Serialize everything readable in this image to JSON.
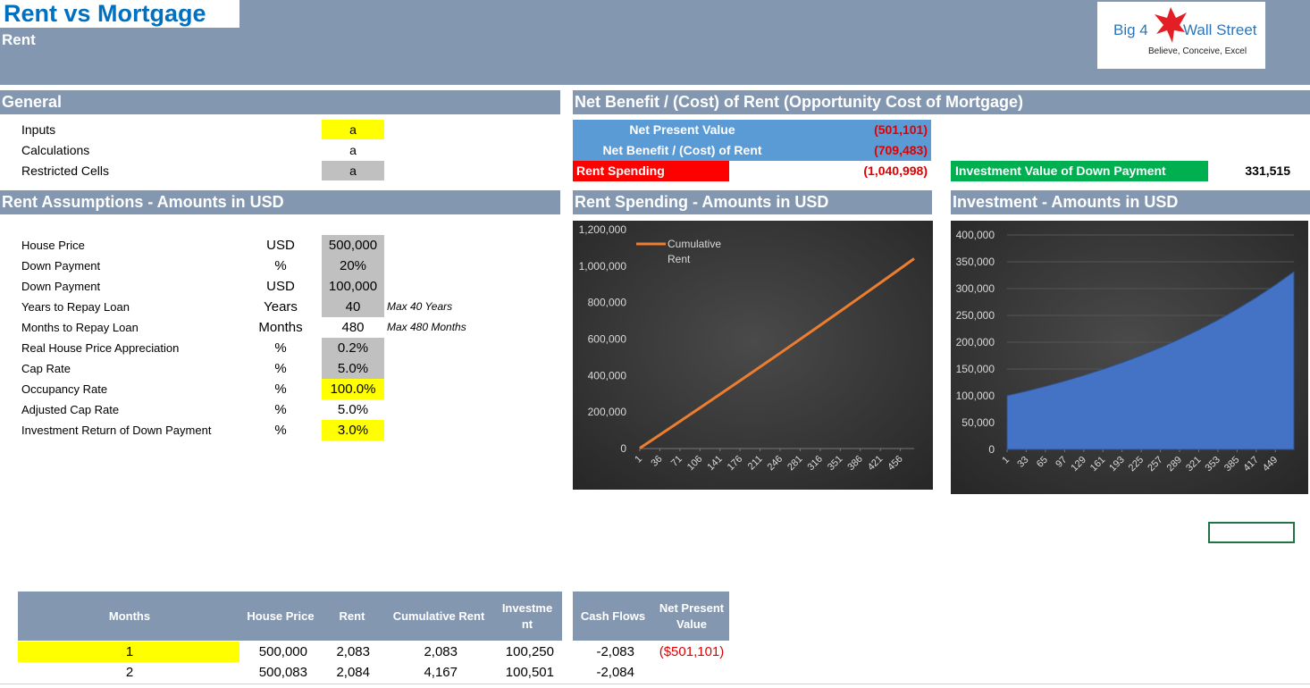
{
  "header": {
    "title": "Rent vs Mortgage",
    "subtitle": "Rent",
    "logo": {
      "brand_left": "Big 4",
      "brand_right": "Wall Street",
      "tagline": "Believe, Conceive, Excel"
    }
  },
  "general": {
    "title": "General",
    "rows": [
      [
        "Inputs",
        "a"
      ],
      [
        "Calculations",
        "a"
      ],
      [
        "Restricted Cells",
        "a"
      ]
    ]
  },
  "net_benefit": {
    "title": "Net Benefit / (Cost) of Rent (Opportunity Cost of Mortgage)",
    "rows": [
      [
        "Net Present Value",
        "(501,101)"
      ],
      [
        "Net Benefit / (Cost) of Rent",
        "(709,483)"
      ],
      [
        "Rent Spending",
        "(1,040,998)"
      ]
    ],
    "investment": [
      "Investment Value of Down Payment",
      "331,515"
    ]
  },
  "assumptions": {
    "title": "Rent Assumptions - Amounts in USD",
    "rows": [
      [
        "House Price",
        "USD",
        "500,000"
      ],
      [
        "Down Payment",
        "%",
        "20%"
      ],
      [
        "Down Payment",
        "USD",
        "100,000"
      ],
      [
        "Years to Repay Loan",
        "Years",
        "40",
        "Max 40 Years"
      ],
      [
        "Months to Repay Loan",
        "Months",
        "480",
        "Max 480 Months"
      ],
      [
        "Real House Price Appreciation",
        "%",
        "0.2%"
      ],
      [
        "Cap Rate",
        "%",
        "5.0%"
      ],
      [
        "Occupancy Rate",
        "%",
        "100.0%"
      ],
      [
        "Adjusted Cap Rate",
        "%",
        "5.0%"
      ],
      [
        "Investment Return of Down Payment",
        "%",
        "3.0%"
      ]
    ]
  },
  "chart_data": [
    {
      "type": "line",
      "title": "Rent Spending - Amounts in USD",
      "x": [
        1,
        36,
        71,
        106,
        141,
        176,
        211,
        246,
        281,
        316,
        351,
        386,
        421,
        456,
        480
      ],
      "series": [
        {
          "name": "Cumulative Rent",
          "color": "#ed7d31",
          "values": [
            2083,
            75200,
            148800,
            222800,
            297300,
            372100,
            447500,
            523200,
            599400,
            676100,
            753100,
            830600,
            908600,
            987000,
            1040998
          ]
        }
      ],
      "xlim": [
        1,
        480
      ],
      "xticks": [
        1,
        36,
        71,
        106,
        141,
        176,
        211,
        246,
        281,
        316,
        351,
        386,
        421,
        456
      ],
      "ylim": [
        0,
        1200000
      ],
      "yticks": [
        0,
        {
          "value": 200000,
          "label": "200,000"
        },
        {
          "value": 400000,
          "label": "400,000"
        },
        {
          "value": 600000,
          "label": "600,000"
        },
        {
          "value": 800000,
          "label": "800,000"
        },
        {
          "value": 1000000,
          "label": "1,000,000"
        },
        {
          "value": 1200000,
          "label": "1,200,000"
        }
      ],
      "grid": false,
      "legend": "top-left"
    },
    {
      "type": "area",
      "title": "Investment - Amounts in USD",
      "x": [
        1,
        33,
        65,
        97,
        129,
        161,
        193,
        225,
        257,
        289,
        321,
        353,
        385,
        417,
        449,
        480
      ],
      "values": [
        100250,
        108600,
        117600,
        127400,
        138000,
        149500,
        161900,
        175400,
        190000,
        205800,
        222900,
        241400,
        261500,
        283300,
        306800,
        331515
      ],
      "color": "#4472c4",
      "xlim": [
        1,
        480
      ],
      "xticks": [
        1,
        33,
        65,
        97,
        129,
        161,
        193,
        225,
        257,
        289,
        321,
        353,
        385,
        417,
        449
      ],
      "ylim": [
        0,
        400000
      ],
      "yticks": [
        0,
        {
          "value": 50000,
          "label": "50,000"
        },
        {
          "value": 100000,
          "label": "100,000"
        },
        {
          "value": 150000,
          "label": "150,000"
        },
        {
          "value": 200000,
          "label": "200,000"
        },
        {
          "value": 250000,
          "label": "250,000"
        },
        {
          "value": 300000,
          "label": "300,000"
        },
        {
          "value": 350000,
          "label": "350,000"
        },
        {
          "value": 400000,
          "label": "400,000"
        }
      ],
      "grid": true
    }
  ],
  "table": {
    "headers": [
      "Months",
      "House Price",
      "Rent",
      "Cumulative Rent",
      "Investment",
      "Cash Flows",
      "Net Present Value"
    ],
    "rows": [
      [
        "1",
        "500,000",
        "2,083",
        "2,083",
        "100,250",
        "-2,083",
        "($501,101)"
      ],
      [
        "2",
        "500,083",
        "2,084",
        "4,167",
        "100,501",
        "-2,084"
      ]
    ]
  }
}
